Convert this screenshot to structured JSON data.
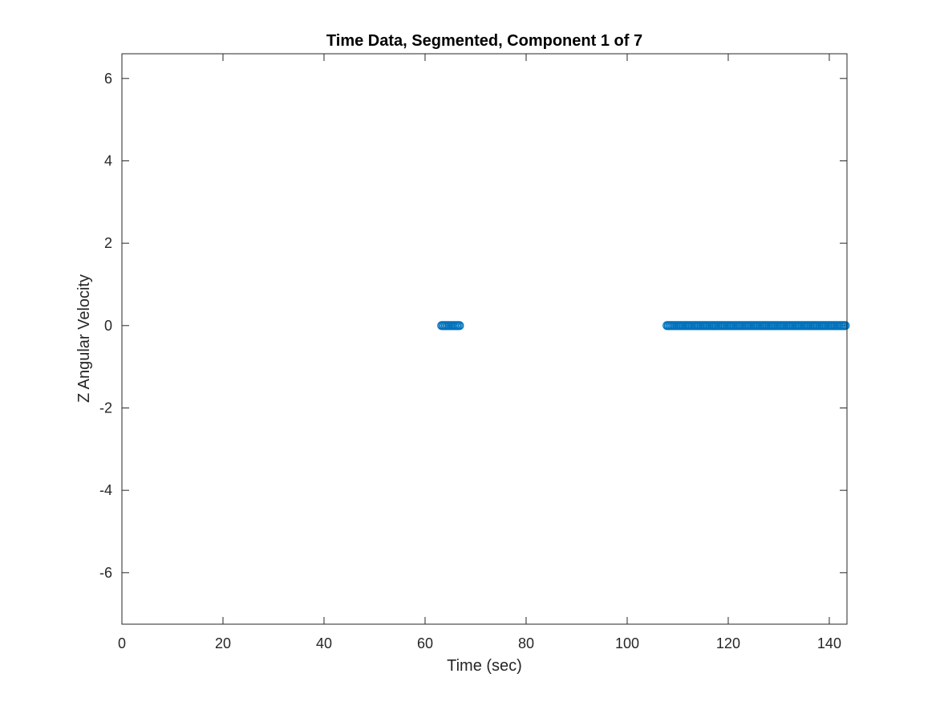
{
  "chart_data": {
    "type": "scatter",
    "title": "Time Data, Segmented, Component 1 of 7",
    "xlabel": "Time (sec)",
    "ylabel": "Z Angular Velocity",
    "xlim": [
      0,
      143.5
    ],
    "ylim": [
      -7.25,
      6.6
    ],
    "xticks": [
      0,
      20,
      40,
      60,
      80,
      100,
      120,
      140
    ],
    "yticks": [
      -6,
      -4,
      -2,
      0,
      2,
      4,
      6
    ],
    "grid": false,
    "legend": "none",
    "series": [
      {
        "color": "#0072BD",
        "marker": "circle",
        "segments": [
          {
            "x_start": 63.3,
            "x_end": 66.9,
            "y": 0
          },
          {
            "x_start": 107.9,
            "x_end": 143.3,
            "y": 0
          }
        ]
      }
    ]
  }
}
